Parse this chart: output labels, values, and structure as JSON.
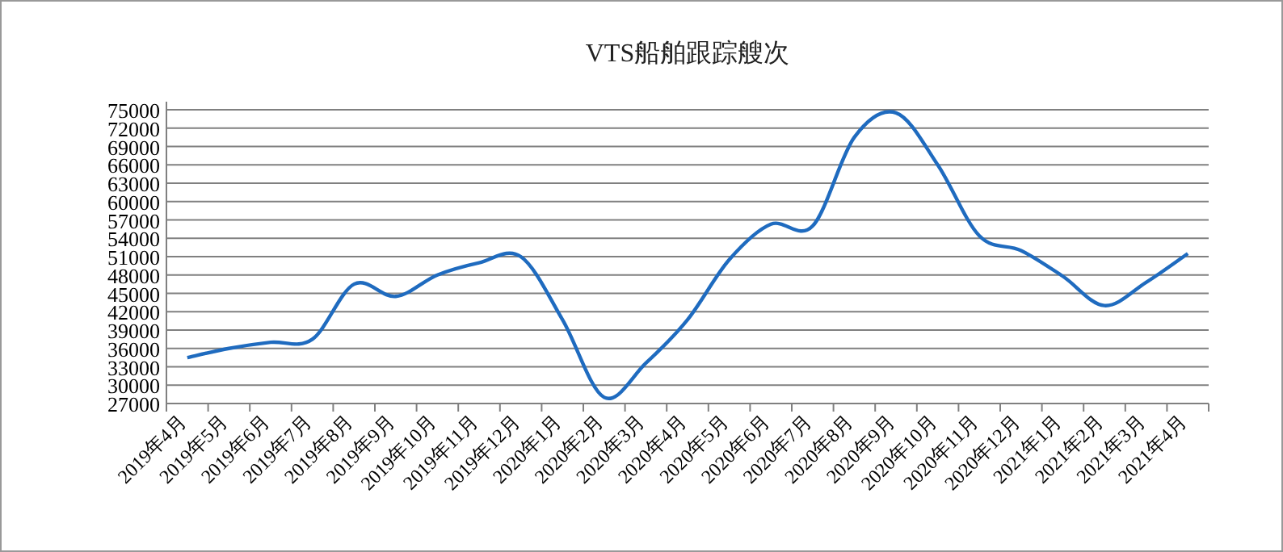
{
  "chart_data": {
    "type": "line",
    "title": "VTS船舶跟踪艘次",
    "categories": [
      "2019年4月",
      "2019年5月",
      "2019年6月",
      "2019年7月",
      "2019年8月",
      "2019年9月",
      "2019年10月",
      "2019年11月",
      "2019年12月",
      "2020年1月",
      "2020年2月",
      "2020年3月",
      "2020年4月",
      "2020年5月",
      "2020年6月",
      "2020年7月",
      "2020年8月",
      "2020年9月",
      "2020年10月",
      "2020年11月",
      "2020年12月",
      "2021年1月",
      "2021年2月",
      "2021年3月",
      "2021年4月"
    ],
    "series": [
      {
        "color": "#1f6bbf",
        "values": [
          34500,
          36000,
          37000,
          37500,
          46500,
          44500,
          48000,
          50000,
          51000,
          40700,
          28000,
          33600,
          40700,
          50500,
          56300,
          56000,
          70500,
          74500,
          66000,
          54400,
          52000,
          47800,
          43000,
          46800,
          51500
        ]
      }
    ],
    "ylim": [
      27000,
      75000
    ],
    "yticks": [
      27000,
      30000,
      33000,
      36000,
      39000,
      42000,
      45000,
      48000,
      51000,
      54000,
      57000,
      60000,
      63000,
      66000,
      69000,
      72000,
      75000
    ],
    "grid": "y",
    "marker": "none"
  }
}
